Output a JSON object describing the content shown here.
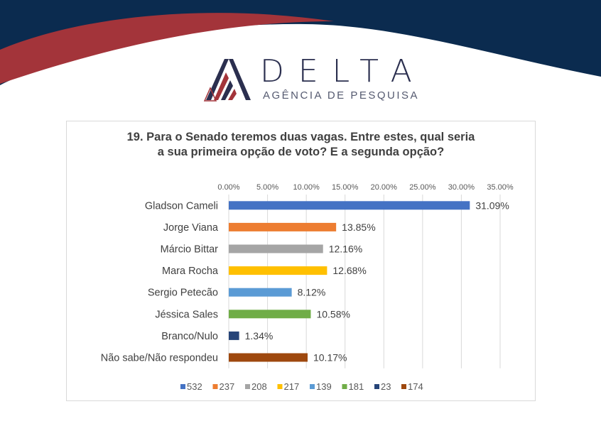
{
  "logo": {
    "name": "DELTA",
    "tagline": "AGÊNCIA DE PESQUISA"
  },
  "colors": {
    "navy": "#0b2b4f",
    "red": "#a3343a"
  },
  "chart_data": {
    "type": "bar",
    "title": "19. Para o Senado teremos duas vagas. Entre estes, qual seria a sua primeira opção de voto? E a segunda opção?",
    "title_lines": [
      "19. Para o Senado teremos duas vagas. Entre estes, qual seria",
      "a sua primeira opção de voto? E a segunda opção?"
    ],
    "categories": [
      "Gladson Cameli",
      "Jorge Viana",
      "Márcio Bittar",
      "Mara Rocha",
      "Sergio Petecão",
      "Jéssica Sales",
      "Branco/Nulo",
      "Não sabe/Não respondeu"
    ],
    "values": [
      31.09,
      13.85,
      12.16,
      12.68,
      8.12,
      10.58,
      1.34,
      10.17
    ],
    "value_labels": [
      "31.09%",
      "13.85%",
      "12.16%",
      "12.68%",
      "8.12%",
      "10.58%",
      "1.34%",
      "10.17%"
    ],
    "colors": [
      "#4472c4",
      "#ed7d31",
      "#a5a5a5",
      "#ffc000",
      "#5b9bd5",
      "#70ad47",
      "#264478",
      "#9e480e"
    ],
    "legend": [
      "532",
      "237",
      "208",
      "217",
      "139",
      "181",
      "23",
      "174"
    ],
    "legend_placement": "bottom",
    "xlim": [
      0,
      35
    ],
    "xticks": [
      "0.00%",
      "5.00%",
      "10.00%",
      "15.00%",
      "20.00%",
      "25.00%",
      "30.00%",
      "35.00%"
    ],
    "grid": true
  }
}
